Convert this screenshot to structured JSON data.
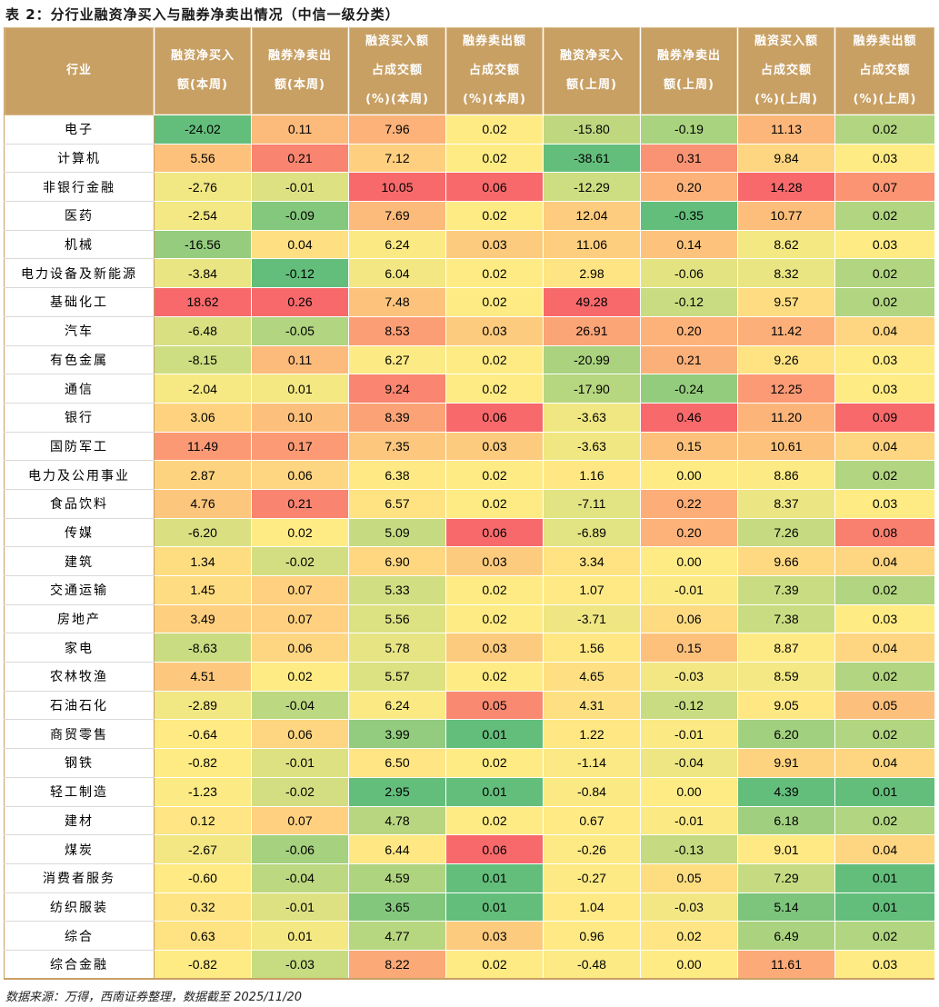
{
  "title": "表 2：分行业融资净买入与融券净卖出情况（中信一级分类）",
  "headers": [
    [
      "行业"
    ],
    [
      "融资净买入",
      "额(本周)"
    ],
    [
      "融券净卖出",
      "额(本周)"
    ],
    [
      "融资买入额",
      "占成交额",
      "(%)(本周)"
    ],
    [
      "融券卖出额",
      "占成交额",
      "(%)(本周)"
    ],
    [
      "融资净买入",
      "额(上周)"
    ],
    [
      "融券净卖出",
      "额(上周)"
    ],
    [
      "融资买入额",
      "占成交额",
      "(%)(上周)"
    ],
    [
      "融券卖出额",
      "占成交额",
      "(%)(上周)"
    ]
  ],
  "rows": [
    [
      "电子",
      "-24.02",
      "0.11",
      "7.96",
      "0.02",
      "-15.80",
      "-0.19",
      "11.13",
      "0.02"
    ],
    [
      "计算机",
      "5.56",
      "0.21",
      "7.12",
      "0.02",
      "-38.61",
      "0.31",
      "9.84",
      "0.03"
    ],
    [
      "非银行金融",
      "-2.76",
      "-0.01",
      "10.05",
      "0.06",
      "-12.29",
      "0.20",
      "14.28",
      "0.07"
    ],
    [
      "医药",
      "-2.54",
      "-0.09",
      "7.69",
      "0.02",
      "12.04",
      "-0.35",
      "10.77",
      "0.02"
    ],
    [
      "机械",
      "-16.56",
      "0.04",
      "6.24",
      "0.03",
      "11.06",
      "0.14",
      "8.62",
      "0.03"
    ],
    [
      "电力设备及新能源",
      "-3.84",
      "-0.12",
      "6.04",
      "0.02",
      "2.98",
      "-0.06",
      "8.32",
      "0.02"
    ],
    [
      "基础化工",
      "18.62",
      "0.26",
      "7.48",
      "0.02",
      "49.28",
      "-0.12",
      "9.57",
      "0.02"
    ],
    [
      "汽车",
      "-6.48",
      "-0.05",
      "8.53",
      "0.03",
      "26.91",
      "0.20",
      "11.42",
      "0.04"
    ],
    [
      "有色金属",
      "-8.15",
      "0.11",
      "6.27",
      "0.02",
      "-20.99",
      "0.21",
      "9.26",
      "0.03"
    ],
    [
      "通信",
      "-2.04",
      "0.01",
      "9.24",
      "0.02",
      "-17.90",
      "-0.24",
      "12.25",
      "0.03"
    ],
    [
      "银行",
      "3.06",
      "0.10",
      "8.39",
      "0.06",
      "-3.63",
      "0.46",
      "11.20",
      "0.09"
    ],
    [
      "国防军工",
      "11.49",
      "0.17",
      "7.35",
      "0.03",
      "-3.63",
      "0.15",
      "10.61",
      "0.04"
    ],
    [
      "电力及公用事业",
      "2.87",
      "0.06",
      "6.38",
      "0.02",
      "1.16",
      "0.00",
      "8.86",
      "0.02"
    ],
    [
      "食品饮料",
      "4.76",
      "0.21",
      "6.57",
      "0.02",
      "-7.11",
      "0.22",
      "8.37",
      "0.03"
    ],
    [
      "传媒",
      "-6.20",
      "0.02",
      "5.09",
      "0.06",
      "-6.89",
      "0.20",
      "7.26",
      "0.08"
    ],
    [
      "建筑",
      "1.34",
      "-0.02",
      "6.90",
      "0.03",
      "3.34",
      "0.00",
      "9.66",
      "0.04"
    ],
    [
      "交通运输",
      "1.45",
      "0.07",
      "5.33",
      "0.02",
      "1.07",
      "-0.01",
      "7.39",
      "0.02"
    ],
    [
      "房地产",
      "3.49",
      "0.07",
      "5.56",
      "0.02",
      "-3.71",
      "0.06",
      "7.38",
      "0.03"
    ],
    [
      "家电",
      "-8.63",
      "0.06",
      "5.78",
      "0.03",
      "1.56",
      "0.15",
      "8.87",
      "0.04"
    ],
    [
      "农林牧渔",
      "4.51",
      "0.02",
      "5.57",
      "0.02",
      "4.65",
      "-0.03",
      "8.59",
      "0.02"
    ],
    [
      "石油石化",
      "-2.89",
      "-0.04",
      "6.24",
      "0.05",
      "4.31",
      "-0.12",
      "9.05",
      "0.05"
    ],
    [
      "商贸零售",
      "-0.64",
      "0.06",
      "3.99",
      "0.01",
      "1.22",
      "-0.01",
      "6.20",
      "0.02"
    ],
    [
      "钢铁",
      "-0.82",
      "-0.01",
      "6.50",
      "0.02",
      "-1.14",
      "-0.04",
      "9.91",
      "0.04"
    ],
    [
      "轻工制造",
      "-1.23",
      "-0.02",
      "2.95",
      "0.01",
      "-0.84",
      "0.00",
      "4.39",
      "0.01"
    ],
    [
      "建材",
      "0.12",
      "0.07",
      "4.78",
      "0.02",
      "0.67",
      "-0.01",
      "6.18",
      "0.02"
    ],
    [
      "煤炭",
      "-2.67",
      "-0.06",
      "6.44",
      "0.06",
      "-0.26",
      "-0.13",
      "9.01",
      "0.04"
    ],
    [
      "消费者服务",
      "-0.60",
      "-0.04",
      "4.59",
      "0.01",
      "-0.27",
      "0.05",
      "7.29",
      "0.01"
    ],
    [
      "纺织服装",
      "0.32",
      "-0.01",
      "3.65",
      "0.01",
      "1.04",
      "-0.03",
      "5.14",
      "0.01"
    ],
    [
      "综合",
      "0.63",
      "0.01",
      "4.77",
      "0.03",
      "0.96",
      "0.02",
      "6.49",
      "0.02"
    ],
    [
      "综合金融",
      "-0.82",
      "-0.03",
      "8.22",
      "0.02",
      "-0.48",
      "0.00",
      "11.61",
      "0.03"
    ]
  ],
  "colors": {
    "header_bg": "#C8A064",
    "scale_low": "#63BE7B",
    "scale_mid": "#FFEB84",
    "scale_high": "#F8696B"
  },
  "source": "数据来源：万得，西南证券整理，数据截至 2025/11/20"
}
